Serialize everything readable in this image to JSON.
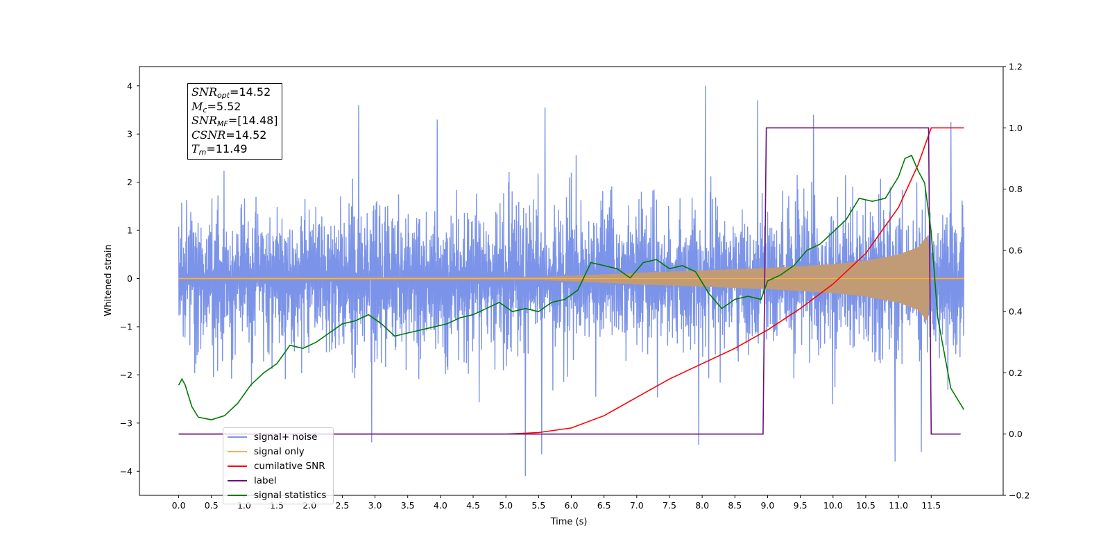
{
  "chart_data": {
    "type": "line",
    "xlabel": "Time (s)",
    "ylabel": "Whitened strain",
    "xlim": [
      -0.6,
      12.6
    ],
    "ylim": [
      -4.5,
      4.4
    ],
    "y2lim": [
      -0.2,
      1.2
    ],
    "xticks": [
      "0.0",
      "0.5",
      "1.0",
      "1.5",
      "2.0",
      "2.5",
      "3.0",
      "3.5",
      "4.0",
      "4.5",
      "5.0",
      "5.5",
      "6.0",
      "6.5",
      "7.0",
      "7.5",
      "8.0",
      "8.5",
      "9.0",
      "9.5",
      "10.0",
      "10.5",
      "11.0",
      "11.5"
    ],
    "yticks": [
      "4",
      "3",
      "2",
      "1",
      "0",
      "−1",
      "−2",
      "−3",
      "−4"
    ],
    "y2ticks": [
      "1.2",
      "1.0",
      "0.8",
      "0.6",
      "0.4",
      "0.2",
      "0.0",
      "−0.2"
    ],
    "grid": false,
    "legend_placement": "lower-left",
    "colors": {
      "signal_noise": "#7b93e8",
      "signal_only": "#f5b04c",
      "signal_fill": "#c19b75",
      "cumulative_snr": "#ff0000",
      "label": "#6a0f7e",
      "statistics": "#007a00"
    },
    "series": [
      {
        "name": "signal+ noise",
        "axis": "left",
        "x_range": [
          0.0,
          12.0
        ],
        "typical_amplitude": 1.4,
        "spikes": [
          {
            "x": 2.75,
            "y": 3.6
          },
          {
            "x": 3.95,
            "y": 3.3
          },
          {
            "x": 5.6,
            "y": 3.55
          },
          {
            "x": 8.05,
            "y": 4.0
          },
          {
            "x": 8.85,
            "y": 3.7
          },
          {
            "x": 9.7,
            "y": 3.4
          },
          {
            "x": 11.8,
            "y": 3.25
          },
          {
            "x": 5.3,
            "y": -4.1
          },
          {
            "x": 5.55,
            "y": -3.65
          },
          {
            "x": 10.95,
            "y": -3.8
          },
          {
            "x": 11.35,
            "y": -3.6
          },
          {
            "x": 2.95,
            "y": -3.4
          },
          {
            "x": 7.95,
            "y": -3.45
          }
        ]
      },
      {
        "name": "signal only",
        "axis": "left",
        "x_range": [
          0.0,
          12.0
        ],
        "envelope": [
          [
            0.0,
            0.02
          ],
          [
            5.5,
            0.03
          ],
          [
            6.0,
            0.06
          ],
          [
            7.0,
            0.12
          ],
          [
            8.0,
            0.17
          ],
          [
            9.0,
            0.22
          ],
          [
            10.0,
            0.3
          ],
          [
            10.5,
            0.37
          ],
          [
            11.0,
            0.5
          ],
          [
            11.3,
            0.65
          ],
          [
            11.45,
            0.9
          ],
          [
            11.5,
            0.02
          ],
          [
            12.0,
            0.02
          ]
        ]
      },
      {
        "name": "cumilative SNR",
        "axis": "right",
        "x": [
          0.0,
          1.0,
          2.0,
          3.0,
          4.0,
          5.0,
          5.5,
          6.0,
          6.5,
          7.0,
          7.5,
          8.0,
          8.5,
          9.0,
          9.5,
          10.0,
          10.5,
          11.0,
          11.3,
          11.5,
          11.6,
          12.0
        ],
        "y": [
          0.0,
          0.0,
          0.0,
          0.0,
          0.0,
          0.0,
          0.005,
          0.02,
          0.06,
          0.12,
          0.18,
          0.23,
          0.28,
          0.34,
          0.41,
          0.49,
          0.59,
          0.74,
          0.88,
          1.0,
          1.0,
          1.0
        ]
      },
      {
        "name": "label",
        "axis": "right",
        "x": [
          0.0,
          8.93,
          8.98,
          11.46,
          11.5,
          11.95
        ],
        "y": [
          0.0,
          0.0,
          1.0,
          1.0,
          0.0,
          0.0
        ]
      },
      {
        "name": "signal statistics",
        "axis": "right",
        "x": [
          0.0,
          0.05,
          0.1,
          0.2,
          0.3,
          0.5,
          0.7,
          0.9,
          1.1,
          1.3,
          1.5,
          1.7,
          1.9,
          2.1,
          2.3,
          2.5,
          2.7,
          2.9,
          3.1,
          3.3,
          3.5,
          3.7,
          3.9,
          4.1,
          4.3,
          4.5,
          4.7,
          4.9,
          5.1,
          5.3,
          5.5,
          5.7,
          5.9,
          6.1,
          6.3,
          6.5,
          6.7,
          6.9,
          7.1,
          7.3,
          7.5,
          7.7,
          7.9,
          8.1,
          8.3,
          8.5,
          8.7,
          8.9,
          9.0,
          9.2,
          9.4,
          9.6,
          9.8,
          10.0,
          10.2,
          10.4,
          10.6,
          10.8,
          11.0,
          11.1,
          11.2,
          11.3,
          11.4,
          11.5,
          11.6,
          11.8,
          12.0
        ],
        "y": [
          0.16,
          0.18,
          0.16,
          0.09,
          0.055,
          0.047,
          0.06,
          0.1,
          0.16,
          0.2,
          0.23,
          0.29,
          0.28,
          0.3,
          0.33,
          0.36,
          0.37,
          0.39,
          0.36,
          0.32,
          0.33,
          0.34,
          0.35,
          0.36,
          0.38,
          0.39,
          0.41,
          0.43,
          0.4,
          0.41,
          0.4,
          0.43,
          0.44,
          0.47,
          0.56,
          0.55,
          0.54,
          0.51,
          0.56,
          0.57,
          0.54,
          0.55,
          0.53,
          0.46,
          0.41,
          0.44,
          0.45,
          0.44,
          0.5,
          0.52,
          0.55,
          0.6,
          0.62,
          0.66,
          0.7,
          0.77,
          0.76,
          0.77,
          0.84,
          0.9,
          0.91,
          0.86,
          0.82,
          0.66,
          0.38,
          0.15,
          0.08
        ]
      }
    ]
  },
  "annotation": [
    {
      "sym": "SNR",
      "sub": "opt",
      "suffix": "=14.52"
    },
    {
      "sym": "M",
      "sub": "c",
      "suffix": "=5.52"
    },
    {
      "sym": "SNR",
      "sub": "MF",
      "suffix": "=[14.48]"
    },
    {
      "sym": "CSNR",
      "sub": "",
      "suffix": "=14.52"
    },
    {
      "sym": "T",
      "sub": "m",
      "suffix": "=11.49"
    }
  ],
  "legend": [
    "signal+ noise",
    "signal only",
    "cumilative SNR",
    "label",
    "signal statistics"
  ],
  "legend_colors": [
    "#7b93e8",
    "#f5b04c",
    "#ff0000",
    "#6a0f7e",
    "#007a00"
  ]
}
